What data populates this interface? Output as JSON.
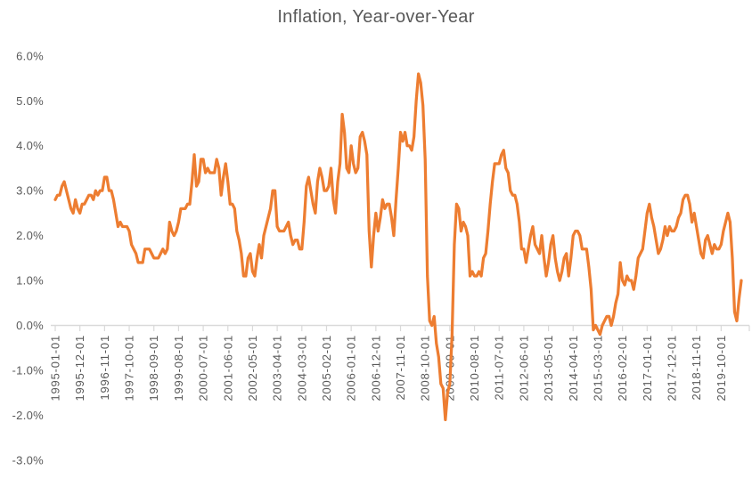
{
  "chart_data": {
    "type": "line",
    "title": "Inflation, Year-over-Year",
    "xlabel": "",
    "ylabel": "",
    "x_start": "1995-01-01",
    "x_end": "2020-07-01",
    "x_frequency": "monthly",
    "x_tick_interval_months": 11,
    "x_tick_labels": [
      "1995-01-01",
      "1995-12-01",
      "1996-11-01",
      "1997-10-01",
      "1998-09-01",
      "1999-08-01",
      "2000-07-01",
      "2001-06-01",
      "2002-05-01",
      "2003-04-01",
      "2004-03-01",
      "2005-02-01",
      "2006-01-01",
      "2006-12-01",
      "2007-11-01",
      "2008-10-01",
      "2009-09-01",
      "2010-08-01",
      "2011-07-01",
      "2012-06-01",
      "2013-05-01",
      "2014-04-01",
      "2015-03-01",
      "2016-02-01",
      "2017-01-01",
      "2017-12-01",
      "2018-11-01",
      "2019-10-01"
    ],
    "y_tick_labels": [
      "6.0%",
      "5.0%",
      "4.0%",
      "3.0%",
      "2.0%",
      "1.0%",
      "0.0%",
      "-1.0%",
      "-2.0%",
      "-3.0%"
    ],
    "ylim": [
      -3.0,
      6.0
    ],
    "grid": false,
    "legend": "none",
    "series": [
      {
        "name": "Inflation, Year-over-Year",
        "values": [
          2.8,
          2.9,
          2.9,
          3.1,
          3.2,
          3.0,
          2.8,
          2.6,
          2.5,
          2.8,
          2.6,
          2.5,
          2.7,
          2.7,
          2.8,
          2.9,
          2.9,
          2.8,
          3.0,
          2.9,
          3.0,
          3.0,
          3.3,
          3.3,
          3.0,
          3.0,
          2.8,
          2.5,
          2.2,
          2.3,
          2.2,
          2.2,
          2.2,
          2.1,
          1.8,
          1.7,
          1.6,
          1.4,
          1.4,
          1.4,
          1.7,
          1.7,
          1.7,
          1.6,
          1.5,
          1.5,
          1.5,
          1.6,
          1.7,
          1.6,
          1.7,
          2.3,
          2.1,
          2.0,
          2.1,
          2.3,
          2.6,
          2.6,
          2.6,
          2.7,
          2.7,
          3.2,
          3.8,
          3.1,
          3.2,
          3.7,
          3.7,
          3.4,
          3.5,
          3.4,
          3.4,
          3.4,
          3.7,
          3.5,
          2.9,
          3.3,
          3.6,
          3.2,
          2.7,
          2.7,
          2.6,
          2.1,
          1.9,
          1.6,
          1.1,
          1.1,
          1.5,
          1.6,
          1.2,
          1.1,
          1.5,
          1.8,
          1.5,
          2.0,
          2.2,
          2.4,
          2.6,
          3.0,
          3.0,
          2.2,
          2.1,
          2.1,
          2.1,
          2.2,
          2.3,
          2.0,
          1.8,
          1.9,
          1.9,
          1.7,
          1.7,
          2.3,
          3.1,
          3.3,
          3.0,
          2.7,
          2.5,
          3.2,
          3.5,
          3.3,
          3.0,
          3.0,
          3.1,
          3.5,
          2.8,
          2.5,
          3.2,
          3.6,
          4.7,
          4.3,
          3.5,
          3.4,
          4.0,
          3.6,
          3.4,
          3.5,
          4.2,
          4.3,
          4.1,
          3.8,
          2.1,
          1.3,
          2.0,
          2.5,
          2.1,
          2.4,
          2.8,
          2.6,
          2.7,
          2.7,
          2.4,
          2.0,
          2.8,
          3.5,
          4.3,
          4.1,
          4.3,
          4.0,
          4.0,
          3.9,
          4.2,
          5.0,
          5.6,
          5.4,
          4.9,
          3.7,
          1.1,
          0.1,
          0.0,
          0.2,
          -0.4,
          -0.7,
          -1.3,
          -1.4,
          -2.1,
          -1.5,
          -1.3,
          -0.2,
          1.8,
          2.7,
          2.6,
          2.1,
          2.3,
          2.2,
          2.0,
          1.1,
          1.2,
          1.1,
          1.1,
          1.2,
          1.1,
          1.5,
          1.6,
          2.1,
          2.7,
          3.2,
          3.6,
          3.6,
          3.6,
          3.8,
          3.9,
          3.5,
          3.4,
          3.0,
          2.9,
          2.9,
          2.7,
          2.3,
          1.7,
          1.7,
          1.4,
          1.7,
          2.0,
          2.2,
          1.8,
          1.7,
          1.6,
          2.0,
          1.5,
          1.1,
          1.4,
          1.8,
          2.0,
          1.5,
          1.2,
          1.0,
          1.2,
          1.5,
          1.6,
          1.1,
          1.5,
          2.0,
          2.1,
          2.1,
          2.0,
          1.7,
          1.7,
          1.7,
          1.3,
          0.8,
          -0.1,
          0.0,
          -0.1,
          -0.2,
          0.0,
          0.1,
          0.2,
          0.2,
          0.0,
          0.2,
          0.5,
          0.7,
          1.4,
          1.0,
          0.9,
          1.1,
          1.0,
          1.0,
          0.8,
          1.1,
          1.5,
          1.6,
          1.7,
          2.1,
          2.5,
          2.7,
          2.4,
          2.2,
          1.9,
          1.6,
          1.7,
          1.9,
          2.2,
          2.0,
          2.2,
          2.1,
          2.1,
          2.2,
          2.4,
          2.5,
          2.8,
          2.9,
          2.9,
          2.7,
          2.3,
          2.5,
          2.2,
          1.9,
          1.6,
          1.5,
          1.9,
          2.0,
          1.8,
          1.6,
          1.8,
          1.7,
          1.7,
          1.8,
          2.1,
          2.3,
          2.5,
          2.3,
          1.5,
          0.3,
          0.1,
          0.6,
          1.0
        ]
      }
    ]
  },
  "colors": {
    "line": "#ED7D31",
    "title_text": "#595959",
    "axis_text": "#595959",
    "axis_line": "#D9D9D9",
    "background": "#FFFFFF"
  }
}
